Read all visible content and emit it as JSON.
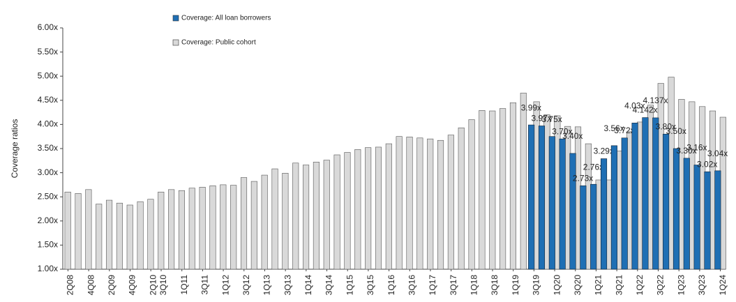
{
  "chart_data": {
    "type": "bar",
    "y_label": "Coverage ratios",
    "categories": [
      "2Q08",
      null,
      "4Q08",
      null,
      "2Q09",
      null,
      "4Q09",
      null,
      "2Q10",
      "3Q10",
      null,
      "1Q11",
      null,
      "3Q11",
      null,
      "1Q12",
      null,
      "3Q12",
      null,
      "1Q13",
      null,
      "3Q13",
      null,
      "1Q14",
      null,
      "3Q14",
      null,
      "1Q15",
      null,
      "3Q15",
      null,
      "1Q16",
      null,
      "3Q16",
      null,
      "1Q17",
      null,
      "3Q17",
      null,
      "1Q18",
      null,
      "3Q18",
      null,
      "1Q19",
      null,
      "3Q19",
      null,
      "1Q20",
      null,
      "3Q20",
      null,
      "1Q21",
      null,
      "3Q21",
      null,
      "1Q22",
      null,
      "3Q22",
      null,
      "1Q23",
      null,
      "3Q23",
      null,
      "1Q24"
    ],
    "series": [
      {
        "name": "Coverage: All loan borrowers",
        "color": "#1f6fb4",
        "values": [
          null,
          null,
          null,
          null,
          null,
          null,
          null,
          null,
          null,
          null,
          null,
          null,
          null,
          null,
          null,
          null,
          null,
          null,
          null,
          null,
          null,
          null,
          null,
          null,
          null,
          null,
          null,
          null,
          null,
          null,
          null,
          null,
          null,
          null,
          null,
          null,
          null,
          null,
          null,
          null,
          null,
          null,
          null,
          null,
          null,
          3.99,
          3.97,
          3.75,
          3.7,
          3.4,
          2.73,
          2.76,
          3.29,
          3.56,
          3.72,
          4.03,
          4.142,
          4.137,
          3.8,
          3.5,
          3.3,
          3.16,
          3.02,
          3.04
        ],
        "value_labels": [
          null,
          null,
          null,
          null,
          null,
          null,
          null,
          null,
          null,
          null,
          null,
          null,
          null,
          null,
          null,
          null,
          null,
          null,
          null,
          null,
          null,
          null,
          null,
          null,
          null,
          null,
          null,
          null,
          null,
          null,
          null,
          null,
          null,
          null,
          null,
          null,
          null,
          null,
          null,
          null,
          null,
          null,
          null,
          null,
          null,
          "3.99x",
          "3.97x",
          "3.75x",
          "3.70x",
          "3.40x",
          "2.73x",
          "2.76x",
          "3.29x",
          "3.56x",
          "3.72x",
          "4.03x",
          "4.142x",
          "4.137x",
          "3.80x",
          "3.50x",
          "3.30x",
          "3.16x",
          "3.02x",
          "3.04x"
        ]
      },
      {
        "name": "Coverage: Public cohort",
        "color": "#d9d9d9",
        "values": [
          2.6,
          2.57,
          2.65,
          2.35,
          2.43,
          2.37,
          2.33,
          2.4,
          2.45,
          2.6,
          2.65,
          2.63,
          2.68,
          2.7,
          2.73,
          2.75,
          2.74,
          2.9,
          2.82,
          2.95,
          3.08,
          2.99,
          3.2,
          3.16,
          3.22,
          3.26,
          3.37,
          3.42,
          3.48,
          3.52,
          3.53,
          3.6,
          3.75,
          3.74,
          3.72,
          3.7,
          3.67,
          3.78,
          3.93,
          4.1,
          4.29,
          4.28,
          4.33,
          4.45,
          4.65,
          4.47,
          4.2,
          4.18,
          3.96,
          3.95,
          3.6,
          2.85,
          2.85,
          3.45,
          3.85,
          4.05,
          4.4,
          4.85,
          4.98,
          4.52,
          4.47,
          4.37,
          4.28,
          4.15
        ]
      }
    ],
    "ylim": [
      1.0,
      6.0
    ],
    "yticks": [
      {
        "value": 1.0,
        "label": "1.00x"
      },
      {
        "value": 1.5,
        "label": "1.50x"
      },
      {
        "value": 2.0,
        "label": "2.00x"
      },
      {
        "value": 2.5,
        "label": "2.50x"
      },
      {
        "value": 3.0,
        "label": "3.00x"
      },
      {
        "value": 3.5,
        "label": "3.50x"
      },
      {
        "value": 4.0,
        "label": "4.00x"
      },
      {
        "value": 4.5,
        "label": "4.50x"
      },
      {
        "value": 5.0,
        "label": "5.00x"
      },
      {
        "value": 5.5,
        "label": "5.50x"
      },
      {
        "value": 6.0,
        "label": "6.00x"
      }
    ],
    "grid": false,
    "legend": "top"
  }
}
